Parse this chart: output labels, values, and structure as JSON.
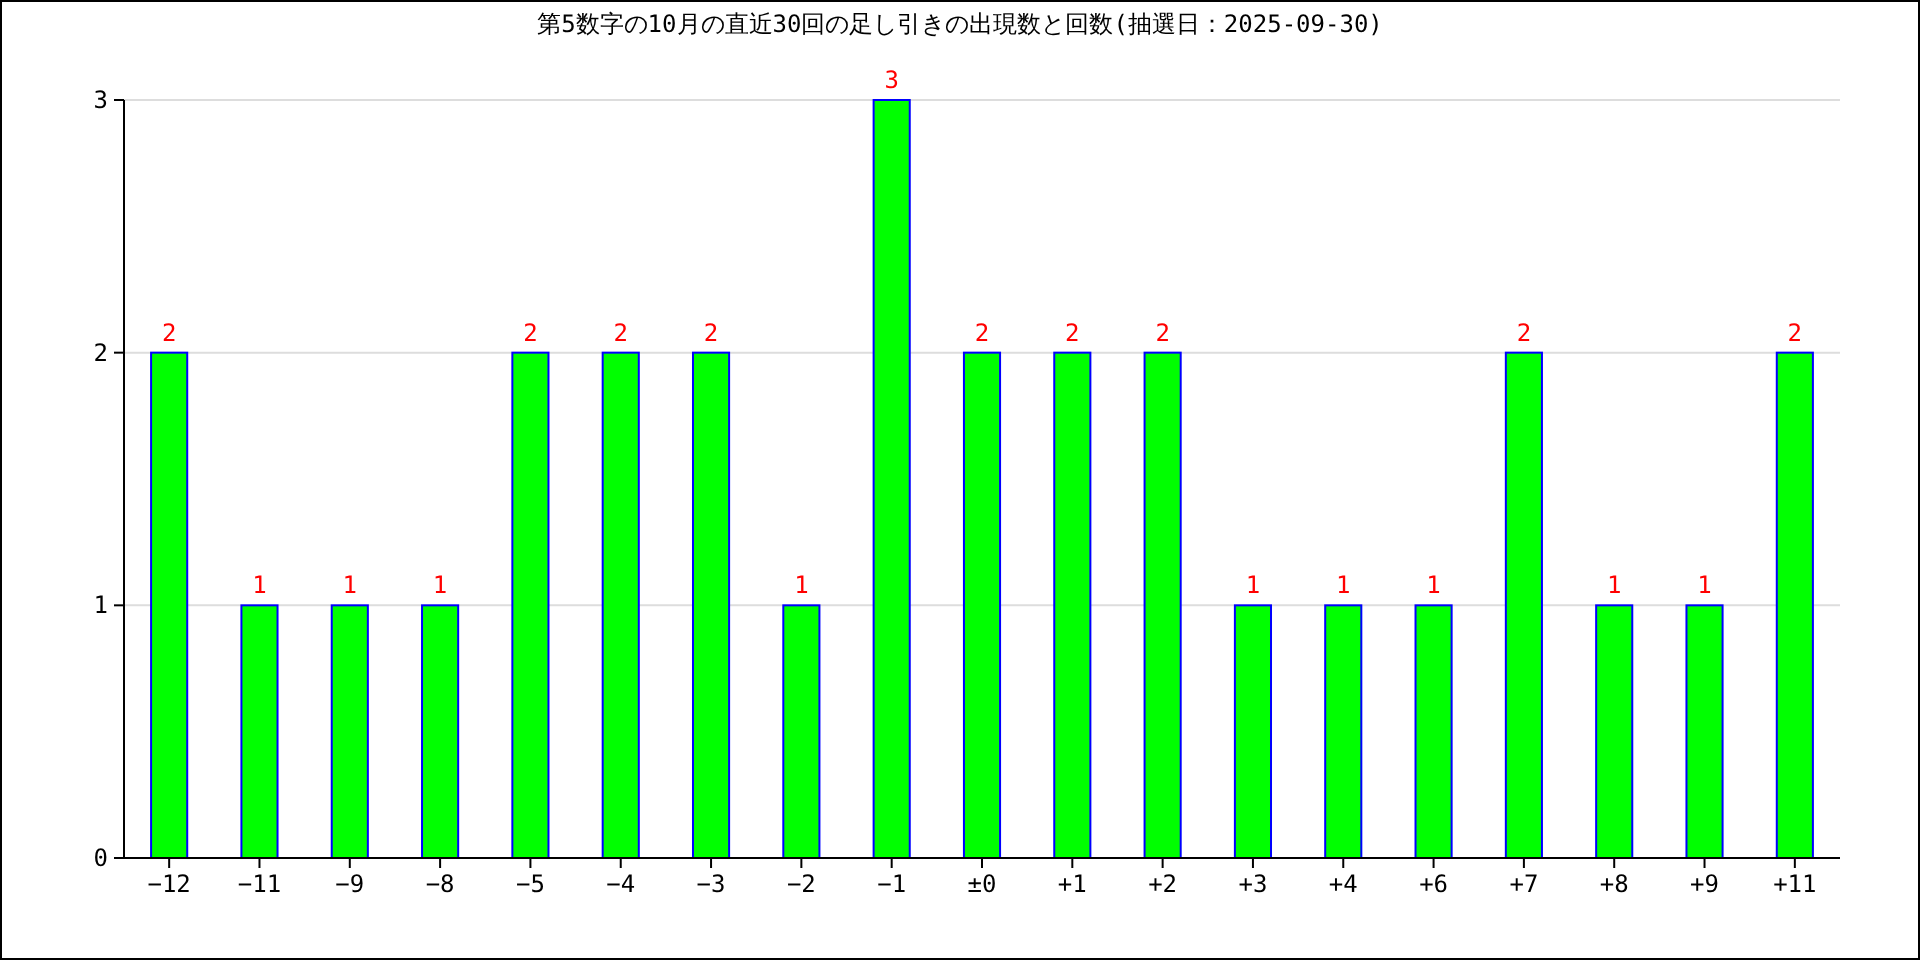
{
  "chart_data": {
    "type": "bar",
    "title": "第5数字の10月の直近30回の足し引きの出現数と回数(抽選日：2025-09-30)",
    "categories": [
      "−12",
      "−11",
      "−9",
      "−8",
      "−5",
      "−4",
      "−3",
      "−2",
      "−1",
      "±0",
      "+1",
      "+2",
      "+3",
      "+4",
      "+6",
      "+7",
      "+8",
      "+9",
      "+11"
    ],
    "values": [
      2,
      1,
      1,
      1,
      2,
      2,
      2,
      1,
      3,
      2,
      2,
      2,
      1,
      1,
      1,
      2,
      1,
      1,
      2
    ],
    "color": "#00ff00",
    "ylim": [
      0,
      3
    ],
    "yticks": [
      0,
      1,
      2,
      3
    ],
    "grid": "y",
    "data_labels": true
  }
}
